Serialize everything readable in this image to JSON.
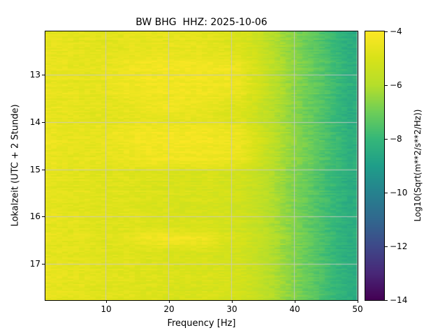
{
  "title": "BW BHG  HHZ: 2025-10-06",
  "xlabel": "Frequency [Hz]",
  "ylabel": "Lokalzeit (UTC + 2 Stunde)",
  "axes": {
    "x_ticks": [
      10,
      20,
      30,
      40,
      50
    ],
    "y_ticks": [
      13,
      14,
      15,
      16,
      17
    ],
    "x_range": [
      0.33,
      50
    ],
    "y_range": [
      12.08,
      17.77
    ]
  },
  "colorbar": {
    "label": "Log10(Sqrt(m**2/s**2/Hz))",
    "ticks": [
      -4,
      -6,
      -8,
      -10,
      -12,
      -14
    ],
    "vmin": -14,
    "vmax": -4
  },
  "colors": {
    "grid": "#c8c8c8",
    "spine": "#000000",
    "background": "#ffffff",
    "viridis": [
      {
        "t": 0.0,
        "c": "#440154"
      },
      {
        "t": 0.1,
        "c": "#482878"
      },
      {
        "t": 0.2,
        "c": "#3e4989"
      },
      {
        "t": 0.3,
        "c": "#31688e"
      },
      {
        "t": 0.4,
        "c": "#26828e"
      },
      {
        "t": 0.5,
        "c": "#1f9e89"
      },
      {
        "t": 0.6,
        "c": "#35b779"
      },
      {
        "t": 0.7,
        "c": "#6ece58"
      },
      {
        "t": 0.8,
        "c": "#b5de2b"
      },
      {
        "t": 0.9,
        "c": "#d8e219"
      },
      {
        "t": 1.0,
        "c": "#fde725"
      }
    ]
  },
  "chart_data": {
    "type": "heatmap",
    "title": "BW BHG  HHZ: 2025-10-06",
    "xlabel": "Frequency [Hz]",
    "ylabel": "Lokalzeit (UTC + 2 Stunde)",
    "value_label": "Log10(Sqrt(m**2/s**2/Hz))",
    "vmin": -14,
    "vmax": -4,
    "x_bin_centers": [
      1.25,
      3.75,
      6.25,
      8.75,
      11.25,
      13.75,
      16.25,
      18.75,
      21.25,
      23.75,
      26.25,
      28.75,
      31.25,
      33.75,
      36.25,
      38.75,
      41.25,
      43.75,
      46.25,
      48.75
    ],
    "y_bin_centers": [
      12.19,
      12.48,
      12.77,
      13.06,
      13.34,
      13.63,
      13.92,
      14.21,
      14.49,
      14.78,
      15.07,
      15.36,
      15.64,
      15.93,
      16.22,
      16.51,
      16.79,
      17.08,
      17.37,
      17.66
    ],
    "values": [
      [
        -4.6,
        -4.6,
        -4.7,
        -4.7,
        -4.7,
        -4.6,
        -4.6,
        -4.6,
        -4.6,
        -4.6,
        -4.7,
        -4.8,
        -4.9,
        -5.3,
        -5.9,
        -6.4,
        -6.9,
        -7.4,
        -7.9,
        -8.4
      ],
      [
        -4.6,
        -4.6,
        -4.7,
        -4.7,
        -4.7,
        -4.6,
        -4.6,
        -4.6,
        -4.6,
        -4.6,
        -4.7,
        -4.8,
        -4.9,
        -5.3,
        -5.9,
        -6.4,
        -6.9,
        -7.4,
        -7.9,
        -8.4
      ],
      [
        -4.5,
        -4.6,
        -4.6,
        -4.6,
        -4.5,
        -4.4,
        -4.3,
        -4.3,
        -4.3,
        -4.3,
        -4.3,
        -4.4,
        -4.5,
        -5.0,
        -5.7,
        -6.3,
        -6.8,
        -7.3,
        -7.8,
        -8.3
      ],
      [
        -4.5,
        -4.6,
        -4.6,
        -4.6,
        -4.5,
        -4.4,
        -4.3,
        -4.3,
        -4.3,
        -4.3,
        -4.3,
        -4.4,
        -4.5,
        -5.0,
        -5.7,
        -6.3,
        -6.8,
        -7.3,
        -7.8,
        -8.3
      ],
      [
        -4.5,
        -4.6,
        -4.6,
        -4.6,
        -4.5,
        -4.4,
        -4.3,
        -4.3,
        -4.3,
        -4.3,
        -4.3,
        -4.4,
        -4.5,
        -5.0,
        -5.7,
        -6.3,
        -6.8,
        -7.3,
        -7.8,
        -8.3
      ],
      [
        -4.6,
        -4.6,
        -4.7,
        -4.7,
        -4.7,
        -4.6,
        -4.5,
        -4.4,
        -4.4,
        -4.5,
        -4.6,
        -4.8,
        -4.9,
        -5.3,
        -5.9,
        -6.4,
        -6.9,
        -7.4,
        -7.9,
        -8.4
      ],
      [
        -4.6,
        -4.6,
        -4.7,
        -4.7,
        -4.7,
        -4.6,
        -4.6,
        -4.6,
        -4.6,
        -4.6,
        -4.7,
        -4.8,
        -4.9,
        -5.3,
        -5.9,
        -6.4,
        -6.9,
        -7.4,
        -7.9,
        -8.4
      ],
      [
        -4.5,
        -4.6,
        -4.6,
        -4.6,
        -4.5,
        -4.4,
        -4.3,
        -4.3,
        -4.3,
        -4.3,
        -4.3,
        -4.4,
        -4.5,
        -5.0,
        -5.7,
        -6.3,
        -6.8,
        -7.3,
        -7.8,
        -8.3
      ],
      [
        -4.5,
        -4.6,
        -4.6,
        -4.6,
        -4.5,
        -4.4,
        -4.3,
        -4.3,
        -4.3,
        -4.3,
        -4.3,
        -4.4,
        -4.5,
        -5.0,
        -5.7,
        -6.3,
        -6.8,
        -7.3,
        -7.8,
        -8.3
      ],
      [
        -4.5,
        -4.6,
        -4.6,
        -4.6,
        -4.5,
        -4.4,
        -4.3,
        -4.3,
        -4.3,
        -4.3,
        -4.3,
        -4.4,
        -4.5,
        -5.0,
        -5.7,
        -6.3,
        -6.8,
        -7.3,
        -7.8,
        -8.3
      ],
      [
        -4.6,
        -4.7,
        -4.7,
        -4.8,
        -4.8,
        -4.8,
        -4.9,
        -4.9,
        -5.0,
        -5.0,
        -5.0,
        -5.1,
        -5.2,
        -5.5,
        -6.0,
        -6.5,
        -7.0,
        -7.5,
        -8.0,
        -8.4
      ],
      [
        -4.6,
        -4.7,
        -4.7,
        -4.8,
        -4.8,
        -4.8,
        -4.9,
        -4.9,
        -5.0,
        -5.0,
        -5.0,
        -5.1,
        -5.2,
        -5.5,
        -6.0,
        -6.5,
        -7.0,
        -7.5,
        -8.0,
        -8.4
      ],
      [
        -4.6,
        -4.7,
        -4.7,
        -4.8,
        -4.8,
        -4.8,
        -4.9,
        -4.9,
        -5.0,
        -5.0,
        -5.0,
        -5.1,
        -5.2,
        -5.5,
        -6.0,
        -6.5,
        -7.0,
        -7.5,
        -8.0,
        -8.4
      ],
      [
        -4.6,
        -4.7,
        -4.7,
        -4.8,
        -4.8,
        -4.8,
        -4.9,
        -4.9,
        -5.0,
        -5.0,
        -5.0,
        -5.1,
        -5.2,
        -5.5,
        -6.0,
        -6.5,
        -7.0,
        -7.5,
        -8.0,
        -8.4
      ],
      [
        -4.6,
        -4.7,
        -4.7,
        -4.8,
        -4.8,
        -4.8,
        -4.9,
        -4.9,
        -5.0,
        -5.0,
        -5.0,
        -5.1,
        -5.2,
        -5.5,
        -6.0,
        -6.5,
        -7.0,
        -7.5,
        -8.0,
        -8.4
      ],
      [
        -4.6,
        -4.7,
        -4.7,
        -4.8,
        -4.8,
        -4.7,
        -4.4,
        -4.3,
        -4.3,
        -4.3,
        -4.5,
        -5.0,
        -5.1,
        -5.4,
        -6.0,
        -6.5,
        -7.0,
        -7.5,
        -8.0,
        -8.4
      ],
      [
        -4.6,
        -4.7,
        -4.7,
        -4.8,
        -4.8,
        -4.8,
        -4.9,
        -4.9,
        -5.0,
        -5.0,
        -5.0,
        -5.1,
        -5.2,
        -5.5,
        -6.0,
        -6.5,
        -7.0,
        -7.5,
        -8.0,
        -8.4
      ],
      [
        -4.6,
        -4.7,
        -4.7,
        -4.8,
        -4.8,
        -4.8,
        -4.9,
        -4.9,
        -5.0,
        -5.0,
        -5.0,
        -5.1,
        -5.2,
        -5.5,
        -6.0,
        -6.5,
        -7.0,
        -7.5,
        -8.0,
        -8.4
      ],
      [
        -4.6,
        -4.7,
        -4.7,
        -4.8,
        -4.8,
        -4.8,
        -4.9,
        -4.9,
        -5.0,
        -5.0,
        -5.0,
        -5.1,
        -5.2,
        -5.5,
        -6.0,
        -6.5,
        -7.0,
        -7.5,
        -8.0,
        -8.4
      ],
      [
        -4.6,
        -4.7,
        -4.7,
        -4.8,
        -4.8,
        -4.8,
        -4.9,
        -4.9,
        -5.0,
        -5.0,
        -5.0,
        -5.1,
        -5.2,
        -5.5,
        -6.0,
        -6.5,
        -7.0,
        -7.5,
        -8.0,
        -8.4
      ]
    ]
  }
}
